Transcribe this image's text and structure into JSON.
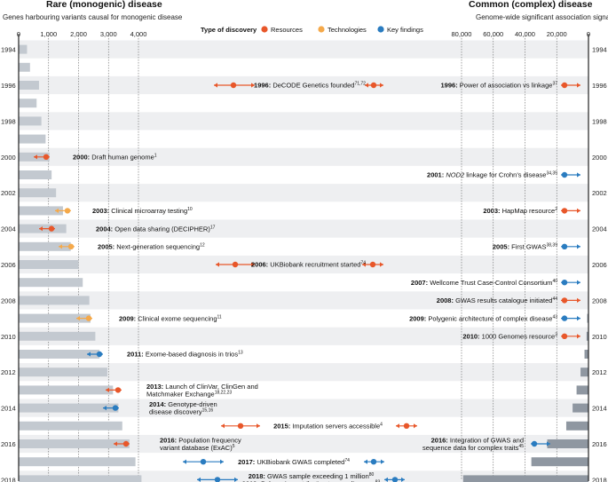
{
  "chart_data": {
    "type": "bar",
    "panels": {
      "left": {
        "title": "Rare (monogenic) disease",
        "subtitle": "Genes harbouring variants causal for monogenic disease",
        "xticks": [
          0,
          1000,
          2000,
          3000,
          4000
        ],
        "xtick_labels": [
          "0",
          "1,000",
          "2,000",
          "3,000",
          "4,000"
        ],
        "xlim": [
          0,
          4700
        ]
      },
      "right": {
        "title": "Common (complex) disease",
        "subtitle": "Genome-wide significant association signals",
        "xticks": [
          80000,
          60000,
          40000,
          20000,
          0
        ],
        "xtick_labels": [
          "80,000",
          "60,000",
          "40,000",
          "20,000",
          "0"
        ],
        "xlim": [
          0,
          100000
        ]
      }
    },
    "years": [
      1994,
      1995,
      1996,
      1997,
      1998,
      1999,
      2000,
      2001,
      2002,
      2003,
      2004,
      2005,
      2006,
      2007,
      2008,
      2009,
      2010,
      2011,
      2012,
      2013,
      2014,
      2015,
      2016,
      2017,
      2018
    ],
    "year_labels": [
      "1994",
      "",
      "1996",
      "",
      "1998",
      "",
      "2000",
      "",
      "2002",
      "",
      "2004",
      "",
      "2006",
      "",
      "2008",
      "",
      "2010",
      "",
      "2012",
      "",
      "2014",
      "",
      "2016",
      "",
      "2018"
    ],
    "series": [
      {
        "panel": "left",
        "values": [
          280,
          380,
          680,
          600,
          760,
          900,
          1030,
          1100,
          1250,
          1480,
          1590,
          1740,
          2000,
          2140,
          2360,
          2400,
          2560,
          2700,
          2960,
          3150,
          3330,
          3460,
          3700,
          3900,
          4100
        ]
      },
      {
        "panel": "right",
        "values": [
          0,
          0,
          0,
          0,
          0,
          0,
          0,
          0,
          0,
          0,
          0,
          0,
          0,
          0,
          300,
          800,
          1200,
          2500,
          5000,
          7500,
          10000,
          14000,
          26000,
          36000,
          79000
        ]
      }
    ],
    "legend": {
      "title": "Type of discovery",
      "items": [
        {
          "name": "Resources",
          "color": "#e8572a"
        },
        {
          "name": "Technologies",
          "color": "#f5a94a"
        },
        {
          "name": "Key findings",
          "color": "#2a7cc0"
        }
      ]
    },
    "events": [
      {
        "year": 1996,
        "side": "center",
        "type": "Resources",
        "lines": [
          {
            "yr": "1996:",
            "text": "DeCODE Genetics founded",
            "ref": "71,72"
          }
        ]
      },
      {
        "year": 1996,
        "side": "right",
        "type": "Resources",
        "lines": [
          {
            "yr": "1996:",
            "text": "Power of association vs linkage",
            "ref": "37"
          }
        ]
      },
      {
        "year": 2000,
        "side": "left",
        "type": "Resources",
        "lines": [
          {
            "yr": "2000:",
            "text": "Draft human genome",
            "ref": "1"
          }
        ]
      },
      {
        "year": 2001,
        "side": "right",
        "type": "Key findings",
        "lines": [
          {
            "yr": "2001:",
            "text": "NOD2 linkage for Crohn's disease",
            "ref": "34,35"
          }
        ]
      },
      {
        "year": 2003,
        "side": "left",
        "type": "Technologies",
        "lines": [
          {
            "yr": "2003:",
            "text": "Clinical microarray testing",
            "ref": "10"
          }
        ]
      },
      {
        "year": 2003,
        "side": "right",
        "type": "Resources",
        "lines": [
          {
            "yr": "2003:",
            "text": "HapMap resource",
            "ref": "2"
          }
        ]
      },
      {
        "year": 2004,
        "side": "left",
        "type": "Resources",
        "lines": [
          {
            "yr": "2004:",
            "text": "Open data sharing (DECIPHER)",
            "ref": "17"
          }
        ]
      },
      {
        "year": 2005,
        "side": "left",
        "type": "Technologies",
        "lines": [
          {
            "yr": "2005:",
            "text": "Next-generation sequencing",
            "ref": "12"
          }
        ]
      },
      {
        "year": 2005,
        "side": "right",
        "type": "Key findings",
        "lines": [
          {
            "yr": "2005:",
            "text": "First GWAS",
            "ref": "38,39"
          }
        ]
      },
      {
        "year": 2006,
        "side": "center",
        "type": "Resources",
        "lines": [
          {
            "yr": "2006:",
            "text": "UKBiobank recruitment started",
            "ref": "74"
          }
        ]
      },
      {
        "year": 2007,
        "side": "right",
        "type": "Key findings",
        "lines": [
          {
            "yr": "2007:",
            "text": "Wellcome Trust Case-Control Consortium",
            "ref": "40"
          }
        ]
      },
      {
        "year": 2008,
        "side": "right",
        "type": "Resources",
        "lines": [
          {
            "yr": "2008:",
            "text": "GWAS results catalogue initiated",
            "ref": "44"
          }
        ]
      },
      {
        "year": 2009,
        "side": "left",
        "type": "Technologies",
        "lines": [
          {
            "yr": "2009:",
            "text": "Clinical exome sequencing",
            "ref": "11"
          }
        ]
      },
      {
        "year": 2009,
        "side": "right",
        "type": "Key findings",
        "lines": [
          {
            "yr": "2009:",
            "text": "Polygenic architecture of complex disease",
            "ref": "43"
          }
        ]
      },
      {
        "year": 2010,
        "side": "right",
        "type": "Resources",
        "lines": [
          {
            "yr": "2010:",
            "text": "1000 Genomes resource",
            "ref": "3"
          }
        ]
      },
      {
        "year": 2011,
        "side": "left",
        "type": "Key findings",
        "lines": [
          {
            "yr": "2011:",
            "text": "Exome-based diagnosis in trios",
            "ref": "13"
          }
        ]
      },
      {
        "year": 2013,
        "side": "left",
        "type": "Resources",
        "lines": [
          {
            "yr": "2013:",
            "text": "Launch of ClinVar, ClinGen and",
            "ref": ""
          },
          {
            "yr": "",
            "text": "Matchmaker Exchange",
            "ref": "18,22,23"
          }
        ]
      },
      {
        "year": 2014,
        "side": "left",
        "type": "Key findings",
        "lines": [
          {
            "yr": "2014:",
            "text": "Genotype-driven",
            "ref": ""
          },
          {
            "yr": "",
            "text": "disease discovery",
            "ref": "15,16"
          }
        ]
      },
      {
        "year": 2015,
        "side": "center",
        "type": "Resources",
        "lines": [
          {
            "yr": "2015:",
            "text": "Imputation servers accessible",
            "ref": "4"
          }
        ]
      },
      {
        "year": 2016,
        "side": "left",
        "type": "Resources",
        "lines": [
          {
            "yr": "2016:",
            "text": "Population frequency",
            "ref": ""
          },
          {
            "yr": "",
            "text": "variant database (ExAC)",
            "ref": "5"
          }
        ]
      },
      {
        "year": 2016,
        "side": "right",
        "type": "Key findings",
        "lines": [
          {
            "yr": "2016:",
            "text": "Integration of GWAS and",
            "ref": ""
          },
          {
            "yr": "",
            "text": "sequence data for complex traits",
            "ref": "45"
          }
        ]
      },
      {
        "year": 2017,
        "side": "center",
        "type": "Key findings",
        "lines": [
          {
            "yr": "2017:",
            "text": "UKBiobank GWAS completed",
            "ref": "74"
          }
        ]
      },
      {
        "year": 2018,
        "side": "center",
        "type": "Key findings",
        "lines": [
          {
            "yr": "2018:",
            "text": "GWAS sample exceeding 1 million",
            "ref": "80"
          },
          {
            "yr": "2018:",
            "text": "Polygenic contribution to rare diseases",
            "ref": "83"
          }
        ]
      }
    ]
  }
}
